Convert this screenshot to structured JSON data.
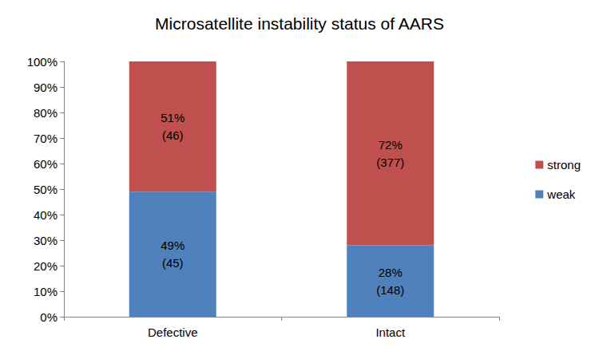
{
  "chart_data": {
    "type": "bar",
    "title": "Microsatellite instability status of AARS",
    "categories": [
      "Defective",
      "Intact"
    ],
    "stacked": true,
    "data_labels": true,
    "legend": "right",
    "grid": false,
    "ylim": [
      0,
      100
    ],
    "yticks": [
      {
        "value": 0,
        "label": "0%"
      },
      {
        "value": 10,
        "label": "10%"
      },
      {
        "value": 20,
        "label": "20%"
      },
      {
        "value": 30,
        "label": "30%"
      },
      {
        "value": 40,
        "label": "40%"
      },
      {
        "value": 50,
        "label": "50%"
      },
      {
        "value": 60,
        "label": "60%"
      },
      {
        "value": 70,
        "label": "70%"
      },
      {
        "value": 80,
        "label": "80%"
      },
      {
        "value": 90,
        "label": "90%"
      },
      {
        "value": 100,
        "label": "100%"
      }
    ],
    "series": [
      {
        "name": "weak",
        "color": "#4f81bd",
        "values": [
          49,
          28
        ],
        "value_labels": [
          "49%",
          "28%"
        ],
        "count_labels": [
          "(45)",
          "(148)"
        ]
      },
      {
        "name": "strong",
        "color": "#c0504d",
        "values": [
          51,
          72
        ],
        "value_labels": [
          "51%",
          "72%"
        ],
        "count_labels": [
          "(46)",
          "(377)"
        ]
      }
    ]
  }
}
